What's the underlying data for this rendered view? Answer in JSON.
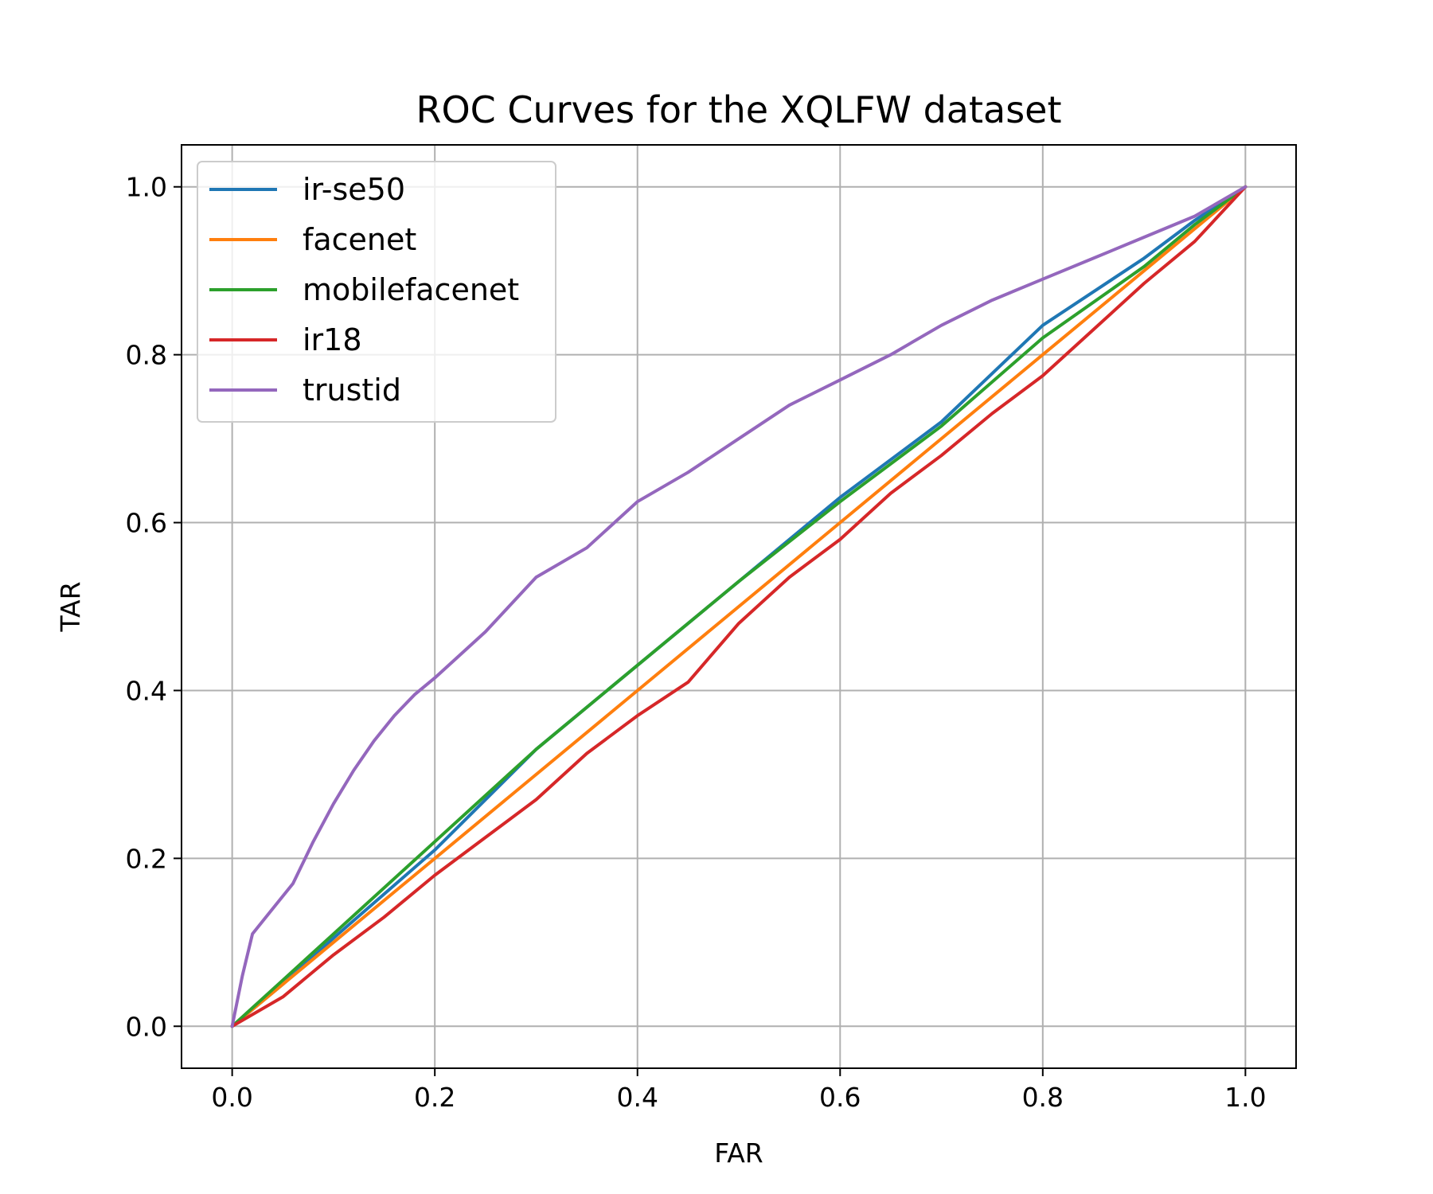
{
  "chart_data": {
    "type": "line",
    "title": "ROC Curves for the XQLFW dataset",
    "xlabel": "FAR",
    "ylabel": "TAR",
    "xlim": [
      -0.05,
      1.05
    ],
    "ylim": [
      -0.05,
      1.05
    ],
    "xticks": [
      "0.0",
      "0.2",
      "0.4",
      "0.6",
      "0.8",
      "1.0"
    ],
    "yticks": [
      "0.0",
      "0.2",
      "0.4",
      "0.6",
      "0.8",
      "1.0"
    ],
    "grid": true,
    "legend_position": "top-left",
    "series": [
      {
        "name": "ir-se50",
        "color": "#1f77b4",
        "points": [
          [
            0,
            0
          ],
          [
            0.05,
            0.05
          ],
          [
            0.1,
            0.105
          ],
          [
            0.2,
            0.21
          ],
          [
            0.3,
            0.33
          ],
          [
            0.4,
            0.43
          ],
          [
            0.5,
            0.53
          ],
          [
            0.6,
            0.63
          ],
          [
            0.7,
            0.72
          ],
          [
            0.8,
            0.835
          ],
          [
            0.9,
            0.915
          ],
          [
            0.95,
            0.96
          ],
          [
            1,
            1
          ]
        ]
      },
      {
        "name": "facenet",
        "color": "#ff7f0e",
        "points": [
          [
            0,
            0
          ],
          [
            0.2,
            0.2
          ],
          [
            0.4,
            0.4
          ],
          [
            0.6,
            0.6
          ],
          [
            0.8,
            0.8
          ],
          [
            1,
            1
          ]
        ]
      },
      {
        "name": "mobilefacenet",
        "color": "#2ca02c",
        "points": [
          [
            0,
            0
          ],
          [
            0.05,
            0.055
          ],
          [
            0.1,
            0.11
          ],
          [
            0.2,
            0.22
          ],
          [
            0.3,
            0.33
          ],
          [
            0.4,
            0.43
          ],
          [
            0.5,
            0.53
          ],
          [
            0.6,
            0.625
          ],
          [
            0.7,
            0.715
          ],
          [
            0.8,
            0.82
          ],
          [
            0.9,
            0.905
          ],
          [
            0.95,
            0.955
          ],
          [
            1,
            1
          ]
        ]
      },
      {
        "name": "ir18",
        "color": "#d62728",
        "points": [
          [
            0,
            0
          ],
          [
            0.05,
            0.035
          ],
          [
            0.1,
            0.085
          ],
          [
            0.15,
            0.13
          ],
          [
            0.2,
            0.18
          ],
          [
            0.25,
            0.225
          ],
          [
            0.3,
            0.27
          ],
          [
            0.35,
            0.325
          ],
          [
            0.4,
            0.37
          ],
          [
            0.45,
            0.41
          ],
          [
            0.5,
            0.48
          ],
          [
            0.55,
            0.535
          ],
          [
            0.6,
            0.58
          ],
          [
            0.65,
            0.635
          ],
          [
            0.7,
            0.68
          ],
          [
            0.75,
            0.73
          ],
          [
            0.8,
            0.775
          ],
          [
            0.85,
            0.83
          ],
          [
            0.9,
            0.885
          ],
          [
            0.95,
            0.935
          ],
          [
            1,
            1
          ]
        ]
      },
      {
        "name": "trustid",
        "color": "#9467bd",
        "points": [
          [
            0,
            0
          ],
          [
            0.01,
            0.06
          ],
          [
            0.02,
            0.11
          ],
          [
            0.04,
            0.14
          ],
          [
            0.06,
            0.17
          ],
          [
            0.08,
            0.22
          ],
          [
            0.1,
            0.265
          ],
          [
            0.12,
            0.305
          ],
          [
            0.14,
            0.34
          ],
          [
            0.16,
            0.37
          ],
          [
            0.18,
            0.395
          ],
          [
            0.2,
            0.415
          ],
          [
            0.25,
            0.47
          ],
          [
            0.3,
            0.535
          ],
          [
            0.35,
            0.57
          ],
          [
            0.4,
            0.625
          ],
          [
            0.45,
            0.66
          ],
          [
            0.5,
            0.7
          ],
          [
            0.55,
            0.74
          ],
          [
            0.6,
            0.77
          ],
          [
            0.65,
            0.8
          ],
          [
            0.7,
            0.835
          ],
          [
            0.75,
            0.865
          ],
          [
            0.8,
            0.89
          ],
          [
            0.85,
            0.915
          ],
          [
            0.9,
            0.94
          ],
          [
            0.95,
            0.965
          ],
          [
            1,
            1
          ]
        ]
      }
    ]
  }
}
